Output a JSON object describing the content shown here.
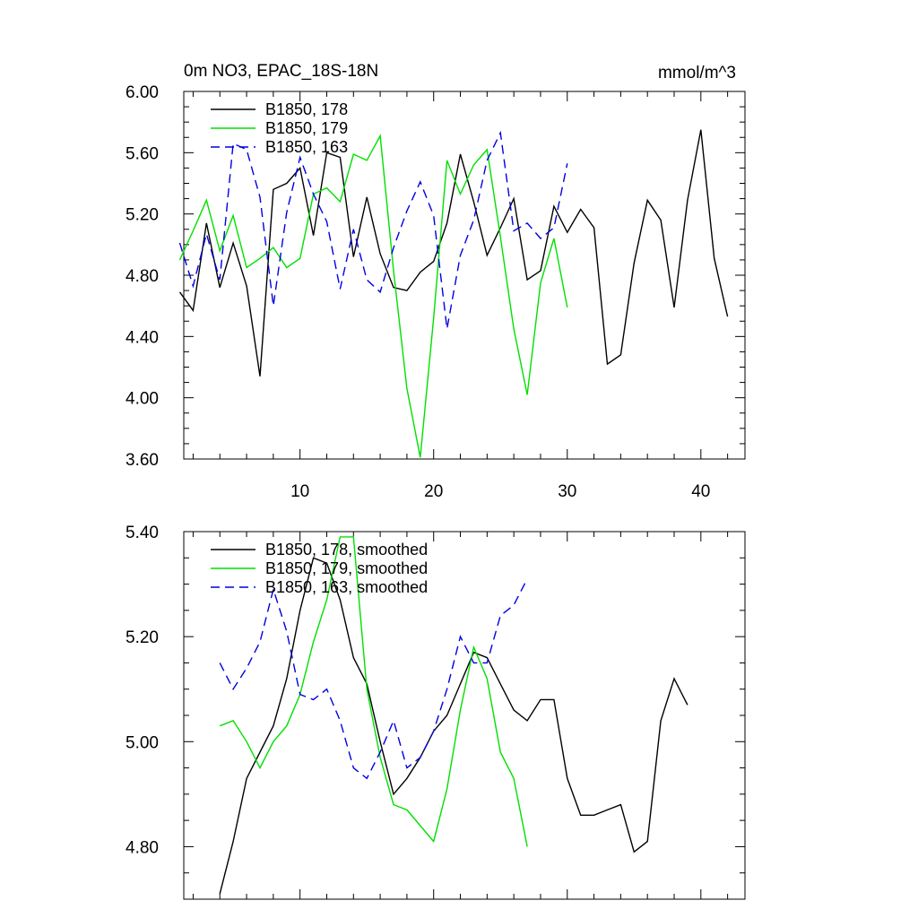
{
  "chart_data": [
    {
      "type": "line",
      "title": "0m NO3, EPAC_18S-18N",
      "units": "mmol/m^3",
      "xlim": [
        1.3,
        43.3
      ],
      "ylim": [
        3.6,
        6.0
      ],
      "yticks": [
        3.6,
        4.0,
        4.4,
        4.8,
        5.2,
        5.6,
        6.0
      ],
      "ytick_labels": [
        "3.60",
        "4.00",
        "4.40",
        "4.80",
        "5.20",
        "5.60",
        "6.00"
      ],
      "xticks": [
        10,
        20,
        30,
        40
      ],
      "xtick_labels": [
        "10",
        "20",
        "30",
        "40"
      ],
      "legend_position": "top-left",
      "series": [
        {
          "name": "B1850, 178",
          "color": "#000000",
          "dash": "solid",
          "x": [
            1,
            2,
            3,
            4,
            5,
            6,
            7,
            8,
            9,
            10,
            11,
            12,
            13,
            14,
            15,
            16,
            17,
            18,
            19,
            20,
            21,
            22,
            23,
            24,
            25,
            26,
            27,
            28,
            29,
            30,
            31,
            32,
            33,
            34,
            35,
            36,
            37,
            38,
            39,
            40,
            41,
            42
          ],
          "values": [
            4.69,
            4.57,
            5.14,
            4.72,
            5.01,
            4.73,
            4.14,
            5.36,
            5.4,
            5.5,
            5.06,
            5.6,
            5.57,
            4.92,
            5.31,
            4.94,
            4.72,
            4.7,
            4.82,
            4.89,
            5.14,
            5.59,
            5.28,
            4.93,
            5.11,
            5.3,
            4.77,
            4.83,
            5.25,
            5.08,
            5.23,
            5.11,
            4.22,
            4.28,
            4.88,
            5.29,
            5.16,
            4.59,
            5.29,
            5.75,
            4.91,
            4.53
          ]
        },
        {
          "name": "B1850, 179",
          "color": "#00e000",
          "dash": "solid",
          "x": [
            1,
            2,
            3,
            4,
            5,
            6,
            7,
            8,
            9,
            10,
            11,
            12,
            13,
            14,
            15,
            16,
            17,
            18,
            19,
            20,
            21,
            22,
            23,
            24,
            25,
            26,
            27,
            28,
            29,
            30
          ],
          "values": [
            4.9,
            5.09,
            5.29,
            4.96,
            5.19,
            4.85,
            4.91,
            4.98,
            4.85,
            4.91,
            5.33,
            5.37,
            5.28,
            5.59,
            5.55,
            5.71,
            4.83,
            4.06,
            3.61,
            4.52,
            5.55,
            5.33,
            5.52,
            5.62,
            5.05,
            4.45,
            4.02,
            4.75,
            5.04,
            4.59
          ]
        },
        {
          "name": "B1850, 163",
          "color": "#0000e0",
          "dash": "10,6",
          "x": [
            1,
            2,
            3,
            4,
            5,
            6,
            7,
            8,
            9,
            10,
            11,
            12,
            13,
            14,
            15,
            16,
            17,
            18,
            19,
            20,
            21,
            22,
            23,
            24,
            25,
            26,
            27,
            28,
            29,
            30
          ],
          "values": [
            5.01,
            4.73,
            5.07,
            4.77,
            5.66,
            5.62,
            5.31,
            4.6,
            5.21,
            5.57,
            5.33,
            5.15,
            4.71,
            5.1,
            4.77,
            4.69,
            4.98,
            5.22,
            5.41,
            5.19,
            4.45,
            4.93,
            5.16,
            5.55,
            5.73,
            5.09,
            5.14,
            5.04,
            5.11,
            5.53
          ]
        }
      ]
    },
    {
      "type": "line",
      "title": "",
      "xlim": [
        1.3,
        43.3
      ],
      "ylim": [
        4.7,
        5.4
      ],
      "yticks": [
        4.8,
        5.0,
        5.2,
        5.4
      ],
      "ytick_labels": [
        "4.80",
        "5.00",
        "5.20",
        "5.40"
      ],
      "legend_position": "top-left",
      "series": [
        {
          "name": "B1850, 178, smoothed",
          "color": "#000000",
          "dash": "solid",
          "x": [
            4,
            5,
            6,
            7,
            8,
            9,
            10,
            11,
            12,
            13,
            14,
            15,
            16,
            17,
            18,
            19,
            20,
            21,
            22,
            23,
            24,
            25,
            26,
            27,
            28,
            29,
            30,
            31,
            32,
            33,
            34,
            35,
            36,
            37,
            38,
            39
          ],
          "values": [
            4.71,
            4.81,
            4.93,
            4.98,
            5.03,
            5.12,
            5.25,
            5.35,
            5.34,
            5.27,
            5.16,
            5.11,
            5.0,
            4.9,
            4.93,
            4.97,
            5.02,
            5.05,
            5.11,
            5.17,
            5.16,
            5.11,
            5.06,
            5.04,
            5.08,
            5.08,
            4.93,
            4.86,
            4.86,
            4.87,
            4.88,
            4.79,
            4.81,
            5.04,
            5.12,
            5.07
          ]
        },
        {
          "name": "B1850, 179, smoothed",
          "color": "#00e000",
          "dash": "solid",
          "x": [
            4,
            5,
            6,
            7,
            8,
            9,
            10,
            11,
            12,
            13,
            14,
            15,
            16,
            17,
            18,
            19,
            20,
            21,
            22,
            23,
            24,
            25,
            26,
            27
          ],
          "values": [
            5.03,
            5.04,
            5.0,
            4.95,
            5.0,
            5.03,
            5.09,
            5.19,
            5.27,
            5.39,
            5.39,
            5.1,
            4.97,
            4.88,
            4.87,
            4.84,
            4.81,
            4.91,
            5.06,
            5.18,
            5.12,
            4.98,
            4.93,
            4.8
          ]
        },
        {
          "name": "B1850, 163, smoothed",
          "color": "#0000e0",
          "dash": "10,6",
          "x": [
            4,
            5,
            6,
            7,
            8,
            9,
            10,
            11,
            12,
            13,
            14,
            15,
            16,
            17,
            18,
            19,
            20,
            21,
            22,
            23,
            24,
            25,
            26,
            27
          ],
          "values": [
            5.15,
            5.1,
            5.14,
            5.19,
            5.29,
            5.21,
            5.09,
            5.08,
            5.1,
            5.04,
            4.95,
            4.93,
            4.98,
            5.04,
            4.95,
            4.97,
            5.02,
            5.1,
            5.2,
            5.15,
            5.15,
            5.24,
            5.26,
            5.31
          ]
        }
      ]
    }
  ]
}
